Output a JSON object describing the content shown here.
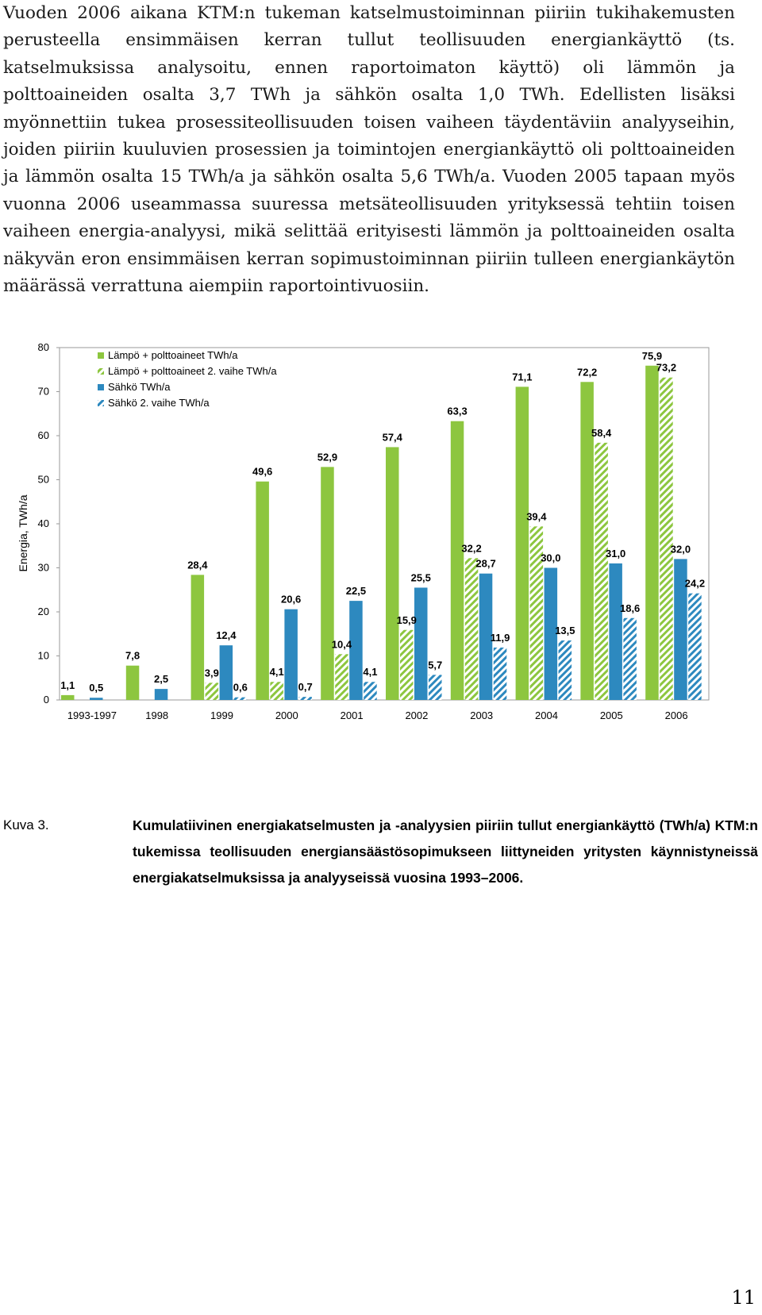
{
  "body_text": "Vuoden 2006 aikana KTM:n tukeman katselmustoiminnan piiriin tukihakemusten perusteella ensimmäisen kerran tullut teollisuuden energiankäyttö (ts. katselmuksissa analysoitu, ennen raportoimaton käyttö) oli lämmön ja polttoaineiden osalta 3,7 TWh ja sähkön osalta 1,0 TWh. Edellisten lisäksi myönnettiin tukea prosessiteollisuuden toisen vaiheen täydentäviin analyyseihin, joiden piiriin kuuluvien prosessien ja toimintojen energiankäyttö oli polttoaineiden ja lämmön osalta 15 TWh/a ja sähkön osalta 5,6 TWh/a. Vuoden 2005 tapaan myös vuonna 2006 useammassa suuressa metsäteollisuuden yrityksessä tehtiin toisen vaiheen energia-analyysi, mikä selittää erityisesti lämmön ja polttoaineiden osalta näkyvän eron ensimmäisen kerran sopimustoiminnan piiriin tulleen energiankäytön määrässä verrattuna aiempiin raportointivuosiin.",
  "chart_data": {
    "type": "bar",
    "categories": [
      "1993-1997",
      "1998",
      "1999",
      "2000",
      "2001",
      "2002",
      "2003",
      "2004",
      "2005",
      "2006"
    ],
    "series": [
      {
        "name": "Lämpö + polttoaineet TWh/a",
        "color": "#8dc63f",
        "pattern": "solid",
        "values": [
          1.1,
          7.8,
          28.4,
          49.6,
          52.9,
          57.4,
          63.3,
          71.1,
          72.2,
          75.9
        ],
        "labels": [
          "1,1",
          "7,8",
          "28,4",
          "49,6",
          "52,9",
          "57,4",
          "63,3",
          "71,1",
          "72,2",
          "75,9"
        ]
      },
      {
        "name": "Lämpö + polttoaineet 2. vaihe TWh/a",
        "color": "#8dc63f",
        "pattern": "hatched",
        "values": [
          null,
          null,
          3.9,
          4.1,
          10.4,
          15.9,
          32.2,
          39.4,
          58.4,
          73.2
        ],
        "labels": [
          "",
          "",
          "3,9",
          "4,1",
          "10,4",
          "15,9",
          "32,2",
          "39,4",
          "58,4",
          "73,2"
        ]
      },
      {
        "name": "Sähkö TWh/a",
        "color": "#2d89bf",
        "pattern": "solid",
        "values": [
          0.5,
          2.5,
          12.4,
          20.6,
          22.5,
          25.5,
          28.7,
          30.0,
          31.0,
          32.0
        ],
        "labels": [
          "0,5",
          "2,5",
          "12,4",
          "20,6",
          "22,5",
          "25,5",
          "28,7",
          "30,0",
          "31,0",
          "32,0"
        ]
      },
      {
        "name": "Sähkö 2. vaihe TWh/a",
        "color": "#2d89bf",
        "pattern": "hatched",
        "values": [
          null,
          null,
          0.6,
          0.7,
          4.1,
          5.7,
          11.9,
          13.5,
          18.6,
          24.2
        ],
        "labels": [
          "",
          "",
          "0,6",
          "0,7",
          "4,1",
          "5,7",
          "11,9",
          "13,5",
          "18,6",
          "24,2"
        ]
      }
    ],
    "ylabel": "Energia, TWh/a",
    "ylim": [
      0,
      80
    ],
    "yticks": [
      "0",
      "10",
      "20",
      "30",
      "40",
      "50",
      "60",
      "70",
      "80"
    ],
    "legend_position": "top-left",
    "grid": false
  },
  "caption": {
    "label": "Kuva 3.",
    "text": "Kumulatiivinen energiakatselmusten ja -analyysien piiriin tullut energiankäyttö (TWh/a) KTM:n tukemissa teollisuuden energiansäästösopimukseen liittyneiden yritysten käynnistyneissä energiakatselmuksissa ja analyyseissä vuosina 1993–2006."
  },
  "page_number": "11"
}
